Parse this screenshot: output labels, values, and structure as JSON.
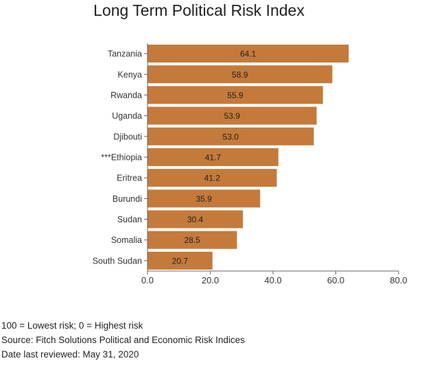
{
  "chart_data": {
    "type": "bar",
    "orientation": "horizontal",
    "title": "Long Term Political Risk Index",
    "categories": [
      "Tanzania",
      "Kenya",
      "Rwanda",
      "Uganda",
      "Djibouti",
      "***Ethiopia",
      "Eritrea",
      "Burundi",
      "Sudan",
      "Somalia",
      "South Sudan"
    ],
    "values": [
      64.1,
      58.9,
      55.9,
      53.9,
      53.0,
      41.7,
      41.2,
      35.9,
      30.4,
      28.5,
      20.7
    ],
    "value_labels": [
      "64.1",
      "58.9",
      "55.9",
      "53.9",
      "53.0",
      "41.7",
      "41.2",
      "35.9",
      "30.4",
      "28.5",
      "20.7"
    ],
    "xlim": [
      0,
      80
    ],
    "xticks": [
      "0.0",
      "20.0",
      "40.0",
      "60.0",
      "80.0"
    ],
    "xlabel": "",
    "ylabel": "",
    "grid": false,
    "bar_color": "#c47a3b",
    "axis_color": "#666666"
  },
  "notes": {
    "scale_note": "100 = Lowest risk; 0 = Highest risk",
    "source": "Source: Fitch Solutions Political and Economic Risk Indices",
    "reviewed": "Date last reviewed: May 31, 2020"
  }
}
